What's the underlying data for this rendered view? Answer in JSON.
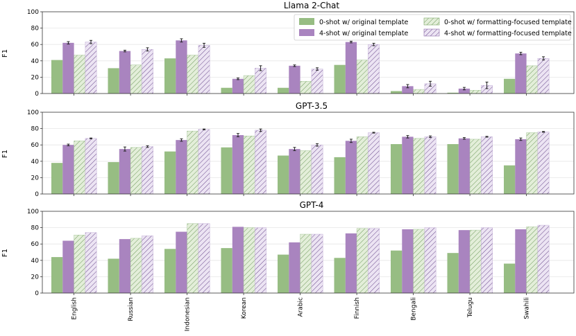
{
  "colors": {
    "zero_shot": "#97bd83",
    "four_shot": "#a984bf",
    "zero_shot_hatch_bg": "#e3eed9",
    "four_shot_hatch_bg": "#ece4f3",
    "error": "#222222",
    "grid": "#e6e6e6",
    "frame": "#333333"
  },
  "chart_data": {
    "type": "bar",
    "ylabel": "F1",
    "ylim": [
      0,
      100
    ],
    "yticks": [
      0,
      20,
      40,
      60,
      80,
      100
    ],
    "categories": [
      "English",
      "Russian",
      "Indonesian",
      "Korean",
      "Arabic",
      "Finnish",
      "Bengali",
      "Telugu",
      "Swahili"
    ],
    "legend": [
      {
        "key": "zs_orig",
        "label": "0-shot w/ original template"
      },
      {
        "key": "fs_orig",
        "label": "4-shot w/ original template"
      },
      {
        "key": "zs_fmt",
        "label": "0-shot w/ formatting-focused template"
      },
      {
        "key": "fs_fmt",
        "label": "4-shot w/ formatting-focused template"
      }
    ],
    "panels": [
      {
        "title": "Llama 2-Chat",
        "series": [
          {
            "key": "zs_orig",
            "values": [
              41,
              31,
              43,
              7,
              7,
              35,
              3,
              1,
              18
            ],
            "errors": [
              0,
              0,
              0,
              0,
              0,
              0,
              0,
              0,
              0
            ]
          },
          {
            "key": "fs_orig",
            "values": [
              62,
              52,
              65,
              18,
              34,
              63,
              9,
              6,
              49
            ],
            "errors": [
              1.5,
              1,
              2,
              1,
              1,
              1,
              2,
              1.5,
              1.5
            ]
          },
          {
            "key": "zs_fmt",
            "values": [
              47,
              35,
              47,
              22,
              15,
              41,
              5,
              4,
              34
            ],
            "errors": [
              0,
              0,
              0,
              0,
              0,
              0,
              0,
              0,
              0
            ]
          },
          {
            "key": "fs_fmt",
            "values": [
              63,
              54,
              59,
              31,
              30,
              60,
              12,
              10,
              43
            ],
            "errors": [
              2,
              2,
              2.5,
              3,
              1.5,
              1.5,
              3,
              4,
              2
            ]
          }
        ]
      },
      {
        "title": "GPT-3.5",
        "series": [
          {
            "key": "zs_orig",
            "values": [
              38,
              39,
              52,
              57,
              47,
              45,
              61,
              61,
              35
            ],
            "errors": [
              0,
              0,
              0,
              0,
              0,
              0,
              0,
              0,
              0
            ]
          },
          {
            "key": "fs_orig",
            "values": [
              60,
              55,
              66,
              72,
              55,
              65,
              70,
              68,
              67
            ],
            "errors": [
              1,
              2.5,
              1.5,
              2,
              2,
              2,
              1.5,
              1,
              1.5
            ]
          },
          {
            "key": "zs_fmt",
            "values": [
              65,
              57,
              77,
              71,
              53,
              70,
              68,
              67,
              75
            ],
            "errors": [
              0,
              0,
              0,
              0,
              0,
              0,
              0,
              0,
              0
            ]
          },
          {
            "key": "fs_fmt",
            "values": [
              68,
              58,
              79,
              78,
              60,
              75,
              70,
              70,
              76
            ],
            "errors": [
              0.5,
              1,
              0.5,
              1.5,
              1.5,
              0.5,
              1,
              0.5,
              0.5
            ]
          }
        ]
      },
      {
        "title": "GPT-4",
        "series": [
          {
            "key": "zs_orig",
            "values": [
              44,
              42,
              54,
              55,
              47,
              43,
              52,
              49,
              36
            ],
            "errors": [
              0,
              0,
              0,
              0,
              0,
              0,
              0,
              0,
              0
            ]
          },
          {
            "key": "fs_orig",
            "values": [
              64,
              66,
              75,
              81,
              62,
              73,
              78,
              77,
              78
            ],
            "errors": [
              0,
              0,
              0,
              0,
              0,
              0,
              0,
              0,
              0
            ]
          },
          {
            "key": "zs_fmt",
            "values": [
              71,
              67,
              85,
              80,
              72,
              79,
              78,
              77,
              81
            ],
            "errors": [
              0,
              0,
              0,
              0,
              0,
              0,
              0,
              0,
              0
            ]
          },
          {
            "key": "fs_fmt",
            "values": [
              74,
              70,
              85,
              80,
              72,
              79,
              80,
              80,
              83
            ],
            "errors": [
              0,
              0,
              0,
              0,
              0,
              0,
              0,
              0,
              0
            ]
          }
        ]
      }
    ]
  }
}
